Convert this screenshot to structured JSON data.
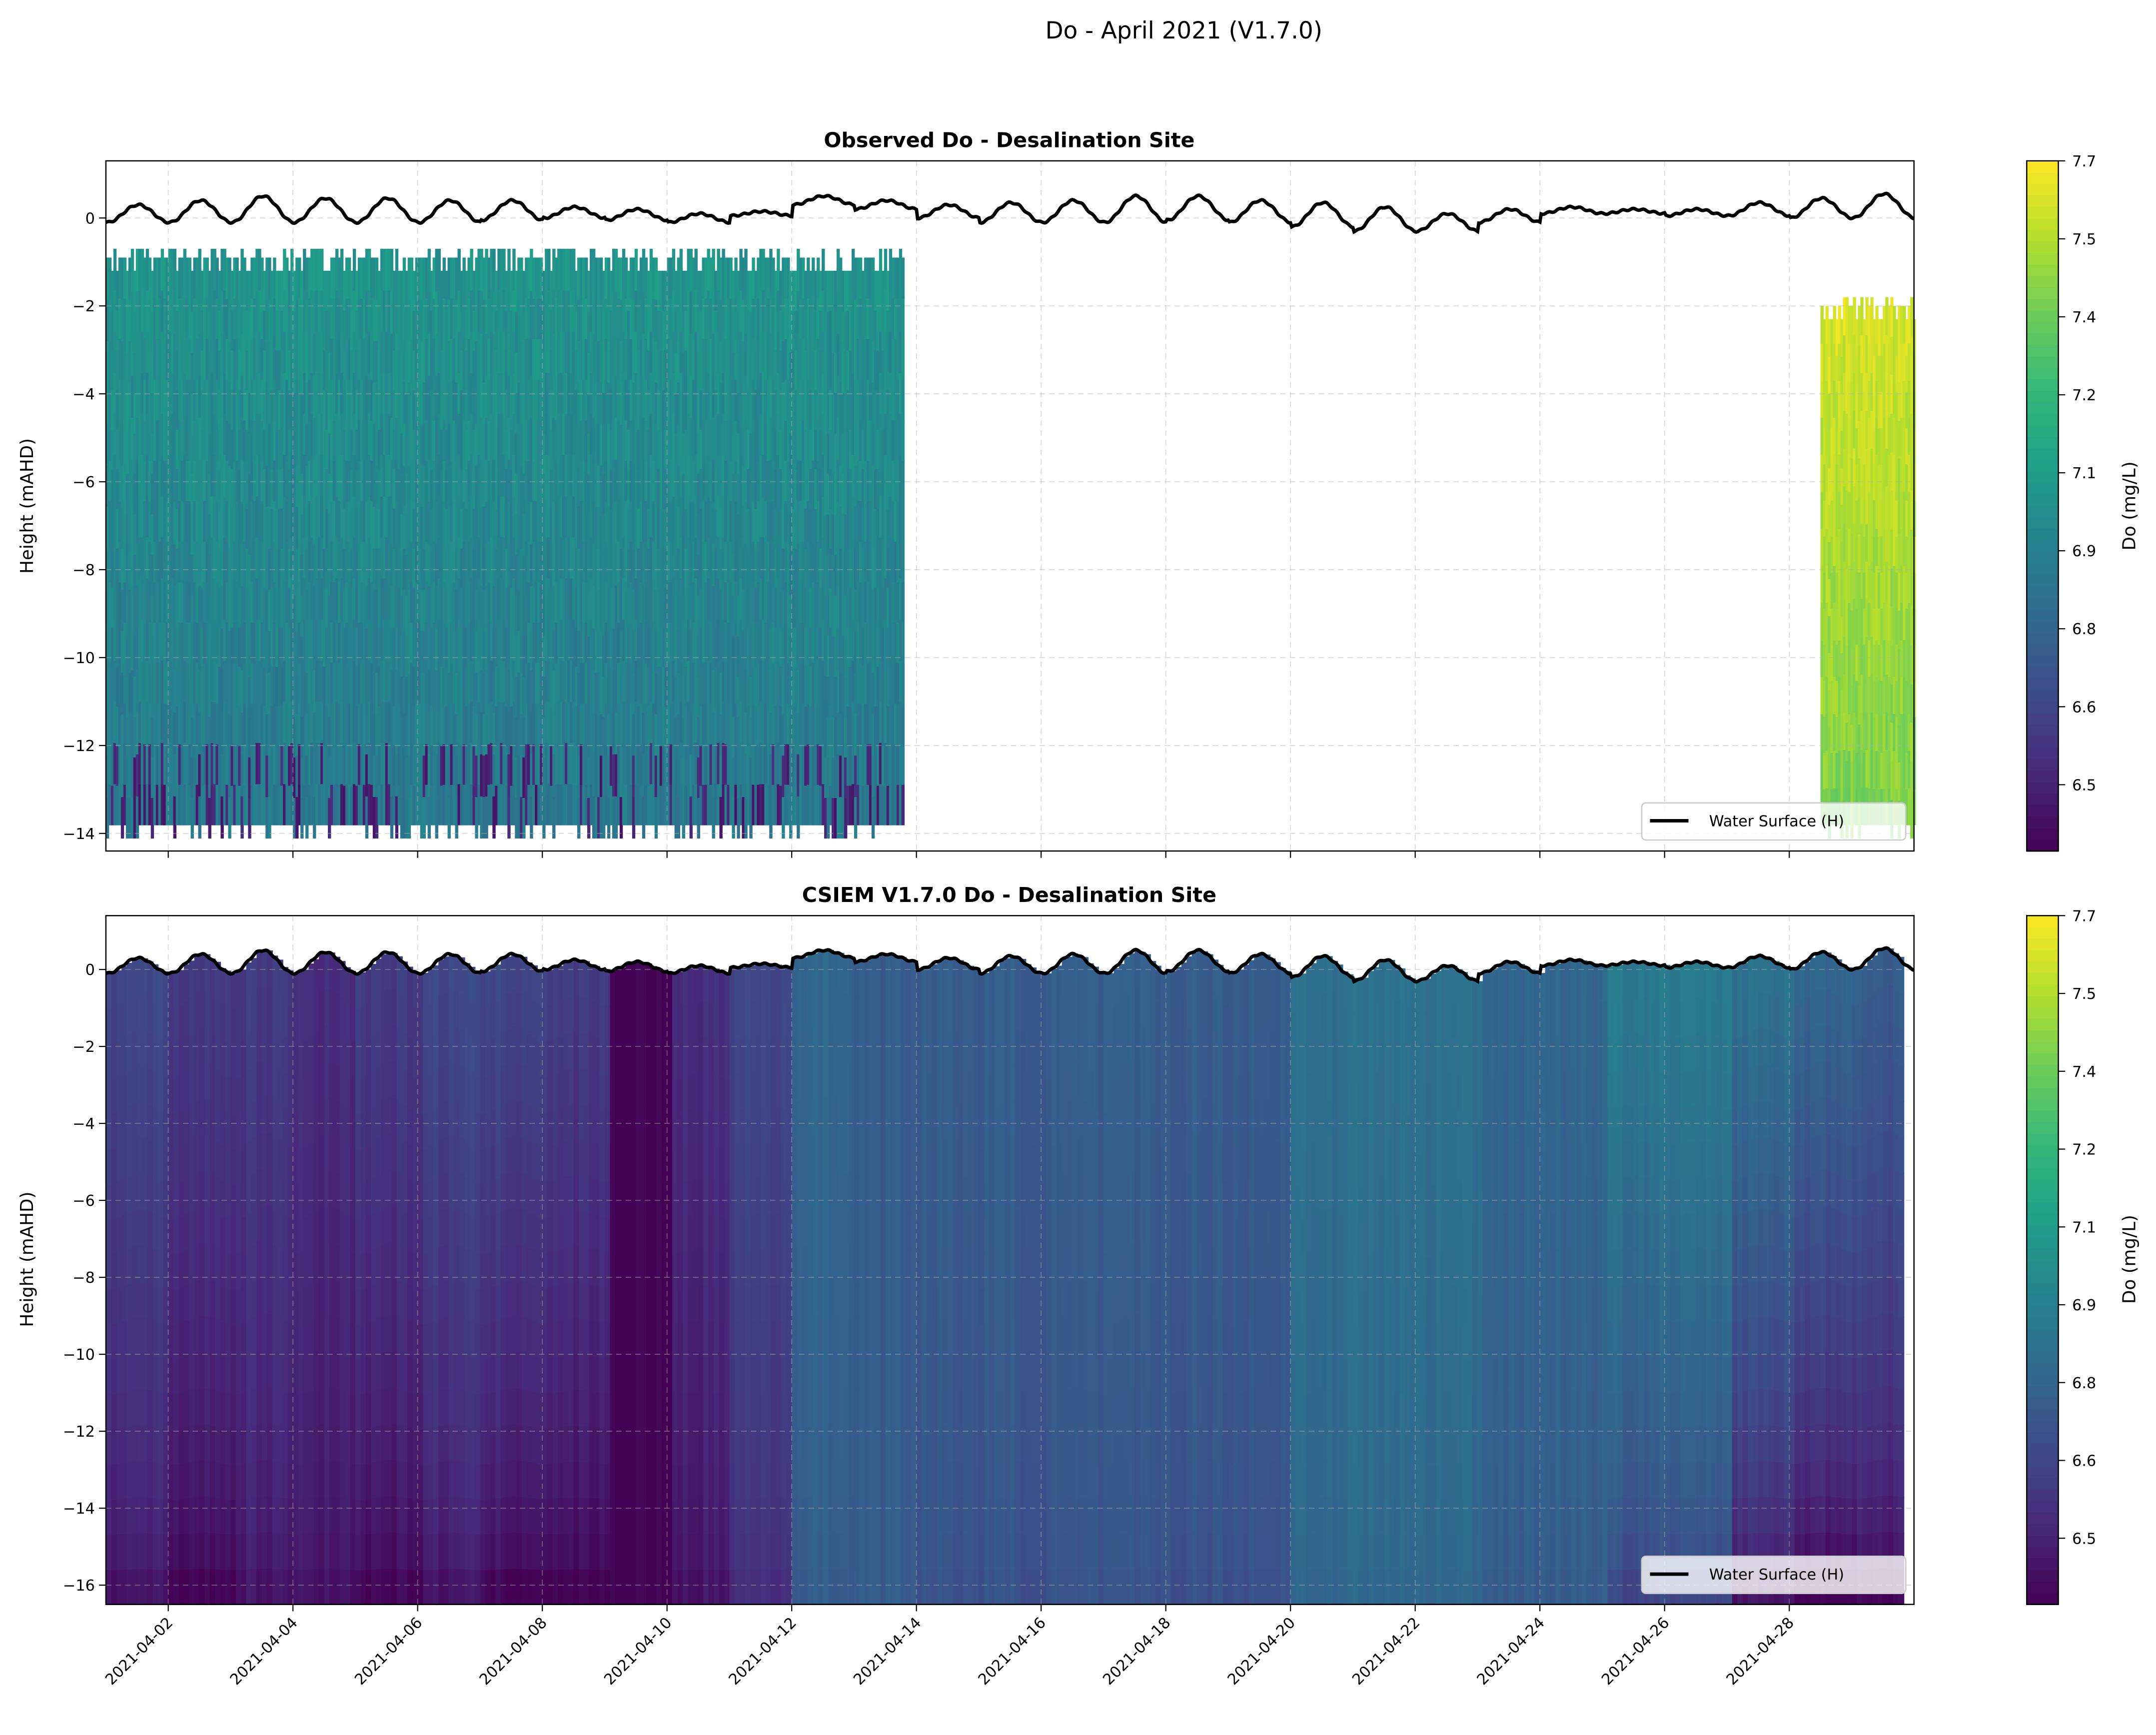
{
  "chart_data": {
    "suptitle": "Do - April 2021 (V1.7.0)",
    "xlim": [
      "2021-04-01",
      "2021-04-30"
    ],
    "x_tick_labels": [
      "2021-04-02",
      "2021-04-04",
      "2021-04-06",
      "2021-04-08",
      "2021-04-10",
      "2021-04-12",
      "2021-04-14",
      "2021-04-16",
      "2021-04-18",
      "2021-04-20",
      "2021-04-22",
      "2021-04-24",
      "2021-04-26",
      "2021-04-28"
    ],
    "colormap": "viridis",
    "colorbar": {
      "label": "Do (mg/L)",
      "vmin": 6.43,
      "vmax": 7.7,
      "tick_labels": [
        "7.7",
        "7.5",
        "7.4",
        "7.2",
        "7.1",
        "6.9",
        "6.8",
        "6.6",
        "6.5"
      ]
    },
    "legend": {
      "label": "Water Surface (H)",
      "placement": "lower-right",
      "color": "#000000"
    },
    "water_surface": {
      "days": [
        "04-01",
        "04-02",
        "04-03",
        "04-04",
        "04-05",
        "04-06",
        "04-07",
        "04-08",
        "04-09",
        "04-10",
        "04-11",
        "04-12",
        "04-13",
        "04-14",
        "04-15",
        "04-16",
        "04-17",
        "04-18",
        "04-19",
        "04-20",
        "04-21",
        "04-22",
        "04-23",
        "04-24",
        "04-25",
        "04-26",
        "04-27",
        "04-28",
        "04-29"
      ],
      "daily_high": [
        0.3,
        0.4,
        0.5,
        0.45,
        0.45,
        0.4,
        0.4,
        0.25,
        0.2,
        0.1,
        0.15,
        0.5,
        0.4,
        0.3,
        0.35,
        0.4,
        0.5,
        0.5,
        0.4,
        0.35,
        0.25,
        0.1,
        0.2,
        0.25,
        0.2,
        0.2,
        0.35,
        0.45,
        0.55
      ],
      "daily_low": [
        -0.1,
        -0.1,
        -0.1,
        -0.1,
        -0.1,
        -0.1,
        -0.05,
        0.0,
        -0.05,
        -0.1,
        0.05,
        0.3,
        0.2,
        0.0,
        -0.1,
        -0.1,
        -0.1,
        -0.05,
        -0.1,
        -0.2,
        -0.3,
        -0.3,
        -0.1,
        0.1,
        0.1,
        0.05,
        0.05,
        0.0,
        0.0
      ]
    },
    "panels": [
      {
        "type": "heatmap",
        "title": "Observed Do - Desalination Site",
        "ylabel": "Height (mAHD)",
        "ylim": [
          -14.4,
          1.3
        ],
        "y_ticks": [
          0,
          -2,
          -4,
          -6,
          -8,
          -10,
          -12,
          -14
        ],
        "observed_periods": [
          {
            "start": "2021-04-01",
            "end": "2021-04-13 19:00",
            "top": -0.9,
            "bottom": -13.8,
            "surface_value": 7.08,
            "bottom_value": 6.95
          },
          {
            "start": "2021-04-28 12:00",
            "end": "2021-04-30",
            "top": -2.0,
            "bottom": -13.8,
            "surface_value": 7.62,
            "bottom_value": 7.45
          }
        ]
      },
      {
        "type": "heatmap",
        "title": "CSIEM V1.7.0 Do - Desalination Site",
        "ylabel": "Height (mAHD)",
        "ylim": [
          -16.5,
          1.4
        ],
        "y_ticks": [
          0,
          -2,
          -4,
          -6,
          -8,
          -10,
          -12,
          -14,
          -16
        ],
        "model_end": "2021-04-29 19:00",
        "model_bottom": -16.5,
        "days": [
          "04-01",
          "04-02",
          "04-03",
          "04-04",
          "04-05",
          "04-06",
          "04-07",
          "04-08",
          "04-09",
          "04-10",
          "04-11",
          "04-12",
          "04-13",
          "04-14",
          "04-15",
          "04-16",
          "04-17",
          "04-18",
          "04-19",
          "04-20",
          "04-21",
          "04-22",
          "04-23",
          "04-24",
          "04-25",
          "04-26",
          "04-27",
          "04-28",
          "04-29"
        ],
        "surface_value": [
          6.7,
          6.65,
          6.65,
          6.6,
          6.65,
          6.7,
          6.7,
          6.65,
          6.43,
          6.6,
          6.7,
          6.85,
          6.8,
          6.8,
          6.8,
          6.8,
          6.8,
          6.8,
          6.8,
          6.9,
          6.9,
          6.9,
          6.85,
          6.85,
          6.95,
          6.95,
          6.9,
          6.85,
          6.8
        ],
        "bottom_value": [
          6.5,
          6.45,
          6.5,
          6.5,
          6.45,
          6.5,
          6.45,
          6.43,
          6.43,
          6.5,
          6.6,
          6.8,
          6.8,
          6.75,
          6.75,
          6.75,
          6.75,
          6.75,
          6.75,
          6.85,
          6.85,
          6.85,
          6.8,
          6.8,
          6.7,
          6.7,
          6.5,
          6.43,
          6.45
        ]
      }
    ]
  }
}
